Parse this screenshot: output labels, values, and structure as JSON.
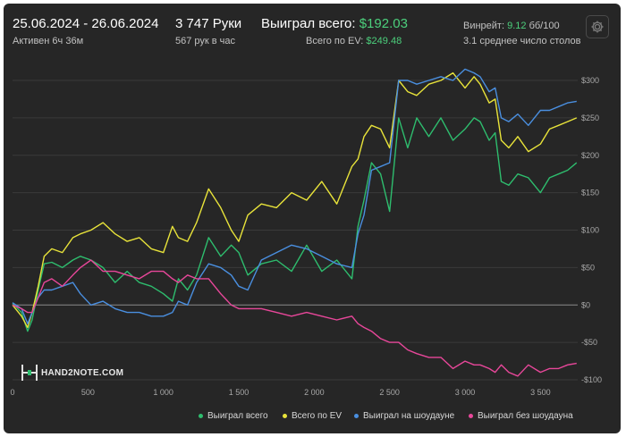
{
  "header": {
    "date_range": "25.06.2024 - 26.06.2024",
    "active_time": "Активен 6ч 36м",
    "hands": "3 747 Руки",
    "hands_per_hour": "567 рук в час",
    "won_label": "Выиграл всего:",
    "won_value": "$192.03",
    "ev_label": "Всего по EV:",
    "ev_value": "$249.48",
    "winrate_label": "Винрейт:",
    "winrate_value": "9.12",
    "winrate_unit": "бб/100",
    "tables": "3.1 среднее число столов"
  },
  "logo": {
    "text": "HAND2NOTE.COM"
  },
  "gear": {
    "icon": "gear-icon"
  },
  "chart_data": {
    "type": "line",
    "xlabel": "",
    "ylabel": "",
    "xlim": [
      0,
      3747
    ],
    "ylim": [
      -100,
      300
    ],
    "x_ticks": [
      0,
      500,
      1000,
      1500,
      2000,
      2500,
      3000,
      3500
    ],
    "x_tick_labels": [
      "0",
      "500",
      "1 000",
      "1 500",
      "2 000",
      "2 500",
      "3 000",
      "3 500"
    ],
    "y_ticks": [
      -100,
      -50,
      0,
      50,
      100,
      150,
      200,
      250,
      300
    ],
    "y_tick_labels": [
      "-$100",
      "-$50",
      "$0",
      "$50",
      "$100",
      "$150",
      "$200",
      "$250",
      "$300"
    ],
    "grid": true,
    "legend_position": "bottom-right",
    "series": [
      {
        "name": "Выиграл всего",
        "color": "#2ebd6e",
        "x": [
          0,
          60,
          100,
          130,
          170,
          210,
          260,
          330,
          400,
          450,
          520,
          600,
          680,
          760,
          840,
          920,
          1000,
          1060,
          1100,
          1160,
          1220,
          1300,
          1380,
          1450,
          1500,
          1560,
          1650,
          1750,
          1850,
          1950,
          2050,
          2150,
          2250,
          2290,
          2330,
          2380,
          2440,
          2500,
          2560,
          2620,
          2680,
          2760,
          2840,
          2920,
          3000,
          3060,
          3100,
          3160,
          3200,
          3240,
          3290,
          3350,
          3420,
          3500,
          3560,
          3620,
          3680,
          3740
        ],
        "y": [
          2,
          -10,
          -35,
          -20,
          20,
          55,
          57,
          50,
          60,
          65,
          60,
          50,
          30,
          45,
          30,
          25,
          15,
          5,
          35,
          20,
          40,
          90,
          65,
          80,
          70,
          40,
          55,
          60,
          45,
          80,
          45,
          60,
          35,
          105,
          140,
          190,
          175,
          125,
          250,
          210,
          250,
          225,
          250,
          220,
          235,
          250,
          245,
          220,
          230,
          165,
          160,
          175,
          170,
          150,
          170,
          175,
          180,
          190
        ]
      },
      {
        "name": "Всего по EV",
        "color": "#e8e33a",
        "x": [
          0,
          60,
          100,
          130,
          170,
          210,
          260,
          330,
          400,
          450,
          520,
          600,
          680,
          760,
          840,
          920,
          1000,
          1060,
          1100,
          1160,
          1220,
          1300,
          1380,
          1450,
          1500,
          1560,
          1650,
          1750,
          1850,
          1950,
          2050,
          2150,
          2250,
          2290,
          2330,
          2380,
          2440,
          2500,
          2560,
          2620,
          2680,
          2760,
          2840,
          2920,
          3000,
          3060,
          3100,
          3160,
          3200,
          3240,
          3290,
          3350,
          3420,
          3500,
          3560,
          3620,
          3680,
          3740
        ],
        "y": [
          0,
          -15,
          -30,
          -10,
          25,
          65,
          75,
          70,
          90,
          95,
          100,
          110,
          95,
          85,
          90,
          75,
          70,
          105,
          90,
          85,
          110,
          155,
          130,
          100,
          85,
          120,
          135,
          130,
          150,
          140,
          165,
          135,
          185,
          195,
          225,
          240,
          235,
          210,
          300,
          285,
          280,
          295,
          300,
          310,
          290,
          305,
          295,
          270,
          275,
          220,
          210,
          225,
          205,
          215,
          235,
          240,
          245,
          250
        ]
      },
      {
        "name": "Выиграл на шоудауне",
        "color": "#4a8fe0",
        "x": [
          0,
          60,
          100,
          130,
          170,
          210,
          260,
          330,
          400,
          450,
          520,
          600,
          680,
          760,
          840,
          920,
          1000,
          1060,
          1100,
          1160,
          1220,
          1300,
          1380,
          1450,
          1500,
          1560,
          1650,
          1750,
          1850,
          1950,
          2050,
          2150,
          2250,
          2290,
          2330,
          2380,
          2440,
          2500,
          2560,
          2620,
          2680,
          2760,
          2840,
          2920,
          3000,
          3060,
          3100,
          3160,
          3200,
          3240,
          3290,
          3350,
          3420,
          3500,
          3560,
          3620,
          3680,
          3740
        ],
        "y": [
          3,
          -5,
          -25,
          -10,
          10,
          20,
          20,
          25,
          30,
          15,
          0,
          5,
          -5,
          -10,
          -10,
          -15,
          -15,
          -10,
          5,
          0,
          30,
          55,
          50,
          40,
          25,
          20,
          60,
          70,
          80,
          75,
          65,
          55,
          50,
          95,
          120,
          180,
          185,
          190,
          300,
          300,
          295,
          300,
          305,
          300,
          315,
          310,
          305,
          285,
          290,
          250,
          245,
          255,
          240,
          260,
          260,
          265,
          270,
          272
        ]
      },
      {
        "name": "Выиграл без шоудауна",
        "color": "#e8479a",
        "x": [
          0,
          60,
          100,
          130,
          170,
          210,
          260,
          330,
          400,
          450,
          520,
          600,
          680,
          760,
          840,
          920,
          1000,
          1060,
          1100,
          1160,
          1220,
          1300,
          1380,
          1450,
          1500,
          1560,
          1650,
          1750,
          1850,
          1950,
          2050,
          2150,
          2250,
          2290,
          2330,
          2380,
          2440,
          2500,
          2560,
          2620,
          2680,
          2760,
          2840,
          2920,
          3000,
          3060,
          3100,
          3160,
          3200,
          3240,
          3290,
          3350,
          3420,
          3500,
          3560,
          3620,
          3680,
          3740
        ],
        "y": [
          0,
          -5,
          -10,
          -10,
          10,
          30,
          35,
          25,
          40,
          50,
          60,
          45,
          45,
          40,
          35,
          45,
          45,
          35,
          30,
          40,
          35,
          35,
          15,
          0,
          -5,
          -5,
          -5,
          -10,
          -15,
          -10,
          -15,
          -20,
          -15,
          -25,
          -30,
          -35,
          -45,
          -50,
          -50,
          -60,
          -65,
          -70,
          -70,
          -85,
          -75,
          -80,
          -80,
          -85,
          -90,
          -80,
          -90,
          -95,
          -80,
          -90,
          -85,
          -85,
          -80,
          -78
        ]
      }
    ]
  }
}
